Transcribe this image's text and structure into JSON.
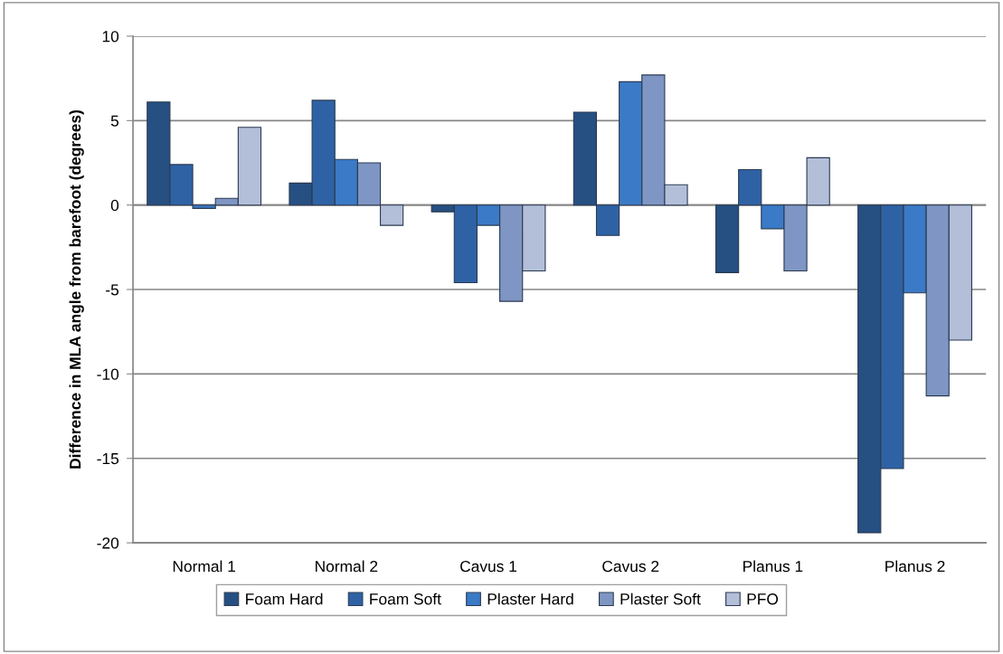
{
  "chart_data": {
    "type": "bar",
    "ylabel": "Difference in MLA angle from barefoot (degrees)",
    "categories": [
      "Normal 1",
      "Normal 2",
      "Cavus 1",
      "Cavus 2",
      "Planus 1",
      "Planus 2"
    ],
    "series": [
      {
        "name": "Foam Hard",
        "color": "#264f82",
        "values": [
          6.1,
          1.3,
          -0.4,
          5.5,
          -4.0,
          -19.4
        ]
      },
      {
        "name": "Foam Soft",
        "color": "#2e62a5",
        "values": [
          2.4,
          6.2,
          -4.6,
          -1.8,
          2.1,
          -15.6
        ]
      },
      {
        "name": "Plaster Hard",
        "color": "#3a7ac6",
        "values": [
          -0.2,
          2.7,
          -1.2,
          7.3,
          -1.4,
          -5.2
        ]
      },
      {
        "name": "Plaster Soft",
        "color": "#7f95c3",
        "values": [
          0.4,
          2.5,
          -5.7,
          7.7,
          -3.9,
          -11.3
        ]
      },
      {
        "name": "PFO",
        "color": "#b3bfd8",
        "values": [
          4.6,
          -1.2,
          -3.9,
          1.2,
          2.8,
          -8.0
        ]
      }
    ],
    "ylim": [
      -20,
      10
    ],
    "yticks": [
      -20,
      -15,
      -10,
      -5,
      0,
      5,
      10
    ],
    "grid": "y",
    "legend": "bottom"
  }
}
